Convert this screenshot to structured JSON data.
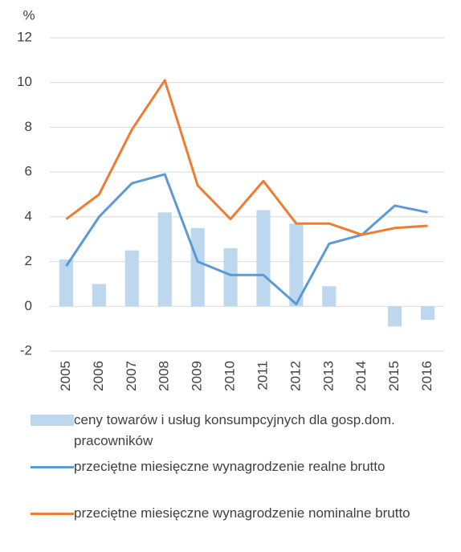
{
  "chart_data": {
    "type": "bar_line",
    "y_unit": "%",
    "categories": [
      "2005",
      "2006",
      "2007",
      "2008",
      "2009",
      "2010",
      "2011",
      "2012",
      "2013",
      "2014",
      "2015",
      "2016"
    ],
    "series": [
      {
        "name": "ceny towarów i usług konsumpcyjnych dla gosp.dom. pracowników",
        "type": "bar",
        "color": "#bdd7ee",
        "values": [
          2.1,
          1.0,
          2.5,
          4.2,
          3.5,
          2.6,
          4.3,
          3.7,
          0.9,
          0,
          -0.9,
          -0.6
        ]
      },
      {
        "name": "przeciętne miesięczne wynagrodzenie realne brutto",
        "type": "line",
        "color": "#5b9bd5",
        "values": [
          1.8,
          4.0,
          5.5,
          5.9,
          2.0,
          1.4,
          1.4,
          0.1,
          2.8,
          3.2,
          4.5,
          4.2
        ]
      },
      {
        "name": "przeciętne miesięczne wynagrodzenie nominalne brutto",
        "type": "line",
        "color": "#ed7d31",
        "values": [
          3.9,
          5.0,
          7.9,
          10.1,
          5.4,
          3.9,
          5.6,
          3.7,
          3.7,
          3.2,
          3.5,
          3.6
        ]
      }
    ],
    "ylim": [
      -2,
      12
    ],
    "yticks": [
      -2,
      0,
      2,
      4,
      6,
      8,
      10,
      12
    ],
    "grid": true,
    "legend": "bottom"
  }
}
